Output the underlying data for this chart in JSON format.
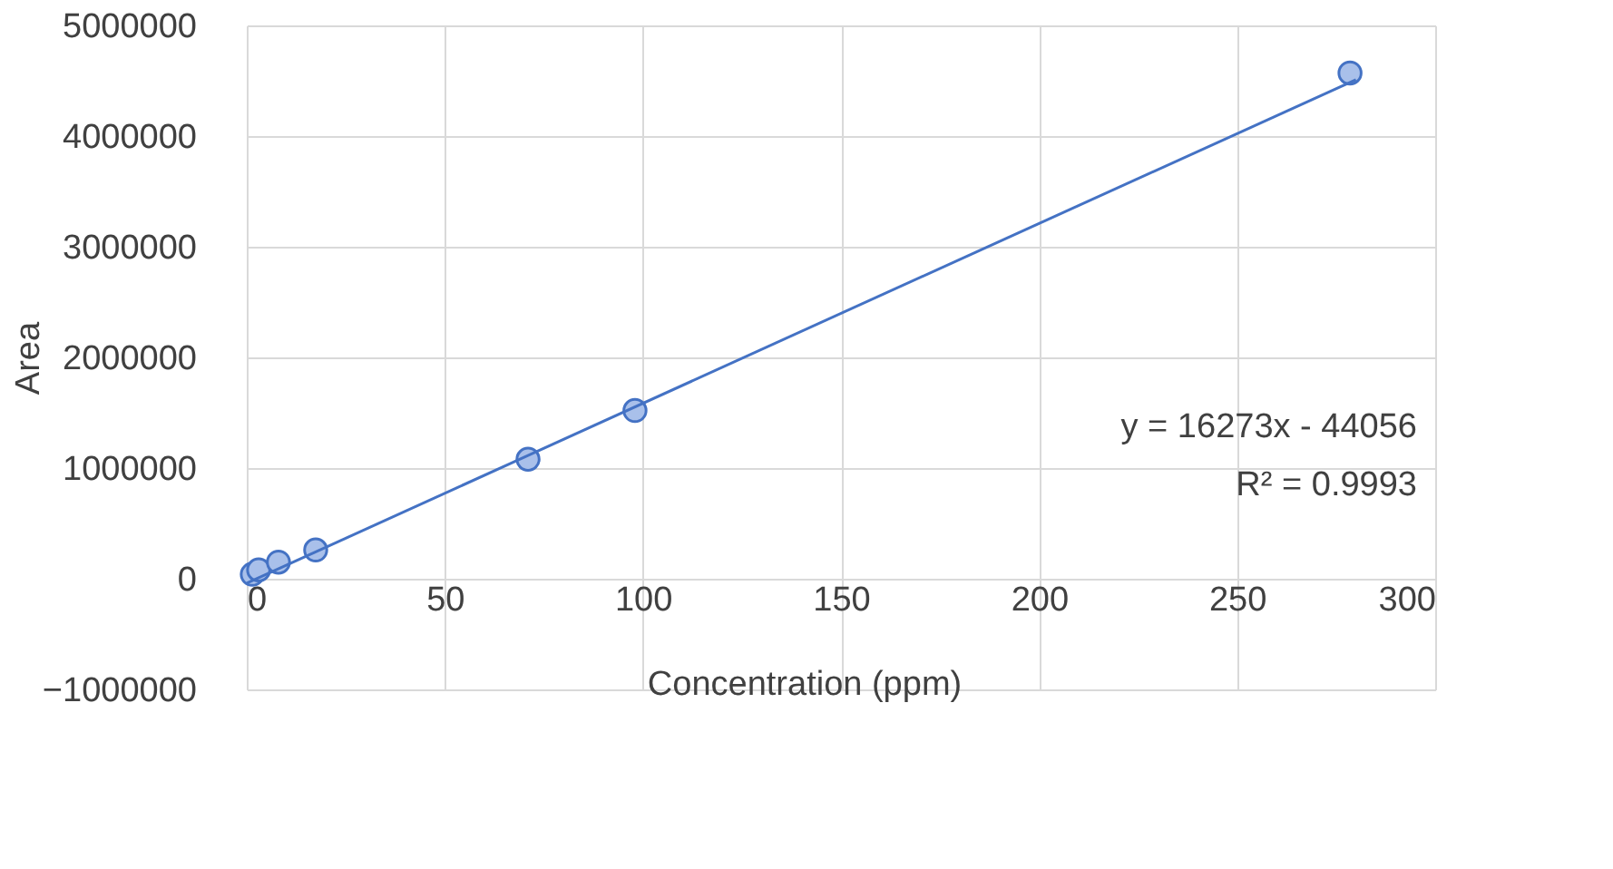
{
  "chart_data": {
    "type": "scatter",
    "xlabel": "Concentration (ppm)",
    "ylabel": "Area",
    "xlim": [
      0,
      300
    ],
    "xticks": [
      0,
      50,
      100,
      150,
      200,
      250,
      300
    ],
    "ylim": [
      -1000000,
      5000000
    ],
    "yticks": [
      -1000000,
      0,
      1000000,
      2000000,
      3000000,
      4000000,
      5000000
    ],
    "grid": true,
    "legend": false,
    "series": [
      {
        "color": "#4472c4",
        "marker": "circle",
        "x": [
          1.4,
          3,
          8,
          17.4,
          71,
          98,
          278.5
        ],
        "values": [
          40000,
          80000,
          150000,
          260000,
          1080000,
          1520000,
          4570000
        ]
      },
      {
        "type": "line",
        "color": "#4472c4",
        "line_style": "solid",
        "x": [
          0,
          280
        ],
        "values": [
          -40000,
          4510000
        ]
      }
    ],
    "annotations": [
      "y = 16273x - 44056",
      "R² = 0.9993"
    ]
  }
}
